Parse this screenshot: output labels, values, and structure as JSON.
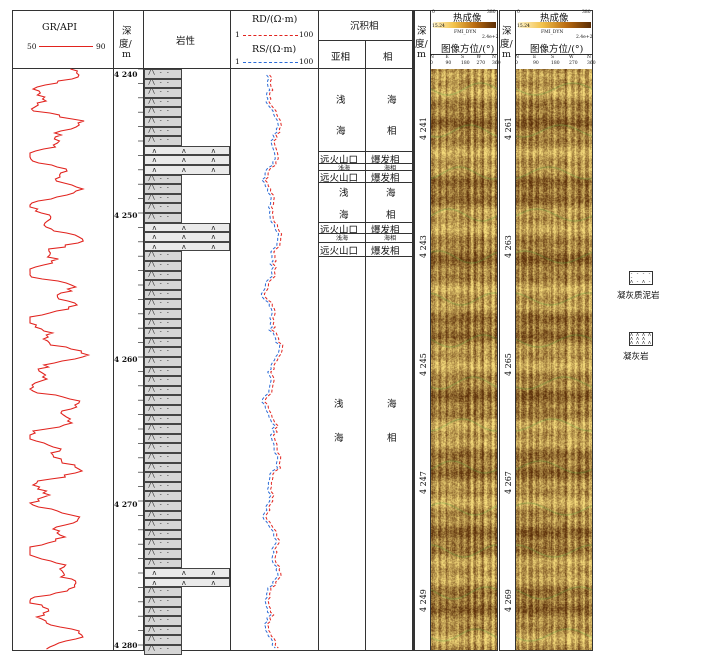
{
  "gr": {
    "title": "GR/API",
    "min": "50",
    "max": "90"
  },
  "depth_col": {
    "title": "深\n度/\nm",
    "t1": "深",
    "t2": "度/",
    "t3": "m",
    "ticks": [
      "4 240",
      "4 250",
      "4 260",
      "4 270",
      "4 280"
    ]
  },
  "litho_col": {
    "title": "岩性"
  },
  "res": {
    "rd_label": "RD/(Ω·m)",
    "rd_min": "1",
    "rd_max": "100",
    "rs_label": "RS/(Ω·m)",
    "rs_min": "1",
    "rs_max": "100"
  },
  "facies": {
    "title": "沉积相",
    "sub_title": "亚相",
    "facies_title": "相",
    "rows": [
      {
        "sub": "浅",
        "fac": "海"
      },
      {
        "sub": "海",
        "fac": "相"
      },
      {
        "sub": "远火山口",
        "fac": "爆发相"
      },
      {
        "sub": "浅海",
        "fac": "海相"
      },
      {
        "sub": "远火山口",
        "fac": "爆发相"
      },
      {
        "sub": "浅",
        "fac": "海"
      },
      {
        "sub": "海",
        "fac": "相"
      },
      {
        "sub": "远火山口",
        "fac": "爆发相"
      },
      {
        "sub": "浅海",
        "fac": "海相"
      },
      {
        "sub": "远火山口",
        "fac": "爆发相"
      },
      {
        "sub": "浅",
        "fac": "海"
      },
      {
        "sub": "海",
        "fac": "相"
      }
    ]
  },
  "image1": {
    "depth_title": "深度/m",
    "t1": "深",
    "t2": "度/",
    "t3": "m",
    "title": "热成像",
    "scale_left": "0",
    "scale_right": "380",
    "sub_left": "15.24",
    "sub_right": "2.4e+2",
    "tool": "FMI_DYN",
    "orient_title": "图像方位/(°)",
    "orient_ticks": [
      "0",
      "90",
      "180",
      "270",
      "360"
    ],
    "compass": [
      "N",
      "E",
      "S",
      "W",
      "N"
    ],
    "depths": [
      "4 241",
      "4 243",
      "4 245",
      "4 247",
      "4 249"
    ]
  },
  "image2": {
    "depth_title": "深度/m",
    "t1": "深",
    "t2": "度/",
    "t3": "m",
    "title": "热成像",
    "scale_left": "0",
    "scale_right": "380",
    "sub_left": "15.24",
    "sub_right": "2.4e+2",
    "tool": "FMI_DYN",
    "orient_title": "图像方位/(°)",
    "orient_ticks": [
      "0",
      "90",
      "180",
      "270",
      "360"
    ],
    "compass": [
      "N",
      "E",
      "S",
      "W",
      "N"
    ],
    "depths": [
      "4 261",
      "4 263",
      "4 265",
      "4 267",
      "4 269"
    ]
  },
  "legend": [
    {
      "label": "凝灰质泥岩",
      "icon": "tuffaceous-mudstone-icon"
    },
    {
      "label": "凝灰岩",
      "icon": "tuff-icon"
    }
  ],
  "colors": {
    "gr": "#e1231e",
    "rd": "#e1231e",
    "rs": "#2a6bd6",
    "image_dark": "#7a4a12",
    "image_light": "#f6e2b0"
  }
}
